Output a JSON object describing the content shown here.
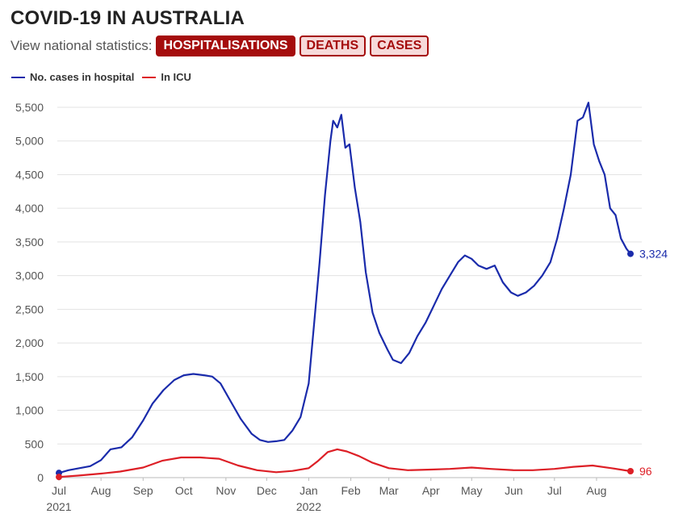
{
  "header": {
    "title": "COVID-19 IN AUSTRALIA",
    "subtitle": "View national statistics:",
    "tabs": [
      {
        "label": "HOSPITALISATIONS",
        "active": true
      },
      {
        "label": "DEATHS",
        "active": false
      },
      {
        "label": "CASES",
        "active": false
      }
    ]
  },
  "colors": {
    "hospital": "#1a2bab",
    "icu": "#dd1f26",
    "accent": "#a50d0d",
    "grid": "#e3e3e3"
  },
  "chart_data": {
    "type": "line",
    "title": "",
    "xlabel": "",
    "ylabel": "",
    "ylim": [
      0,
      5500
    ],
    "yticks": [
      0,
      500,
      1000,
      1500,
      2000,
      2500,
      3000,
      3500,
      4000,
      4500,
      5000,
      5500
    ],
    "ytick_labels": [
      "0",
      "500",
      "1,000",
      "1,500",
      "2,000",
      "2,500",
      "3,000",
      "3,500",
      "4,000",
      "4,500",
      "5,000",
      "5,500"
    ],
    "xlim": [
      "2021-07-01",
      "2022-08-26"
    ],
    "xticks": [
      {
        "date": "2021-07-01",
        "label": "Jul",
        "year": "2021"
      },
      {
        "date": "2021-08-01",
        "label": "Aug",
        "year": ""
      },
      {
        "date": "2021-09-01",
        "label": "Sep",
        "year": ""
      },
      {
        "date": "2021-10-01",
        "label": "Oct",
        "year": ""
      },
      {
        "date": "2021-11-01",
        "label": "Nov",
        "year": ""
      },
      {
        "date": "2021-12-01",
        "label": "Dec",
        "year": ""
      },
      {
        "date": "2022-01-01",
        "label": "Jan",
        "year": "2022"
      },
      {
        "date": "2022-02-01",
        "label": "Feb",
        "year": ""
      },
      {
        "date": "2022-03-01",
        "label": "Mar",
        "year": ""
      },
      {
        "date": "2022-04-01",
        "label": "Apr",
        "year": ""
      },
      {
        "date": "2022-05-01",
        "label": "May",
        "year": ""
      },
      {
        "date": "2022-06-01",
        "label": "Jun",
        "year": ""
      },
      {
        "date": "2022-07-01",
        "label": "Jul",
        "year": ""
      },
      {
        "date": "2022-08-01",
        "label": "Aug",
        "year": ""
      }
    ],
    "grid": true,
    "legend_position": "top-left",
    "series": [
      {
        "name": "No. cases in hospital",
        "color": "#1a2bab",
        "end_label": "3,324",
        "points": [
          [
            "2021-07-01",
            70
          ],
          [
            "2021-07-08",
            110
          ],
          [
            "2021-07-16",
            140
          ],
          [
            "2021-07-24",
            170
          ],
          [
            "2021-08-01",
            260
          ],
          [
            "2021-08-08",
            420
          ],
          [
            "2021-08-16",
            450
          ],
          [
            "2021-08-24",
            600
          ],
          [
            "2021-09-01",
            850
          ],
          [
            "2021-09-08",
            1100
          ],
          [
            "2021-09-16",
            1300
          ],
          [
            "2021-09-24",
            1450
          ],
          [
            "2021-10-01",
            1520
          ],
          [
            "2021-10-08",
            1540
          ],
          [
            "2021-10-16",
            1520
          ],
          [
            "2021-10-22",
            1500
          ],
          [
            "2021-10-28",
            1400
          ],
          [
            "2021-11-04",
            1150
          ],
          [
            "2021-11-12",
            870
          ],
          [
            "2021-11-20",
            650
          ],
          [
            "2021-11-26",
            560
          ],
          [
            "2021-12-02",
            530
          ],
          [
            "2021-12-08",
            540
          ],
          [
            "2021-12-14",
            560
          ],
          [
            "2021-12-20",
            700
          ],
          [
            "2021-12-26",
            900
          ],
          [
            "2022-01-01",
            1400
          ],
          [
            "2022-01-05",
            2300
          ],
          [
            "2022-01-09",
            3200
          ],
          [
            "2022-01-13",
            4200
          ],
          [
            "2022-01-17",
            5000
          ],
          [
            "2022-01-19",
            5300
          ],
          [
            "2022-01-22",
            5200
          ],
          [
            "2022-01-25",
            5390
          ],
          [
            "2022-01-28",
            4900
          ],
          [
            "2022-01-31",
            4950
          ],
          [
            "2022-02-04",
            4300
          ],
          [
            "2022-02-08",
            3800
          ],
          [
            "2022-02-12",
            3050
          ],
          [
            "2022-02-17",
            2450
          ],
          [
            "2022-02-22",
            2150
          ],
          [
            "2022-02-28",
            1900
          ],
          [
            "2022-03-04",
            1750
          ],
          [
            "2022-03-10",
            1700
          ],
          [
            "2022-03-16",
            1850
          ],
          [
            "2022-03-22",
            2100
          ],
          [
            "2022-03-28",
            2300
          ],
          [
            "2022-04-03",
            2550
          ],
          [
            "2022-04-09",
            2800
          ],
          [
            "2022-04-15",
            3000
          ],
          [
            "2022-04-21",
            3200
          ],
          [
            "2022-04-26",
            3300
          ],
          [
            "2022-05-01",
            3250
          ],
          [
            "2022-05-06",
            3150
          ],
          [
            "2022-05-12",
            3100
          ],
          [
            "2022-05-18",
            3150
          ],
          [
            "2022-05-24",
            2900
          ],
          [
            "2022-05-30",
            2750
          ],
          [
            "2022-06-04",
            2700
          ],
          [
            "2022-06-10",
            2750
          ],
          [
            "2022-06-16",
            2850
          ],
          [
            "2022-06-22",
            3000
          ],
          [
            "2022-06-28",
            3200
          ],
          [
            "2022-07-03",
            3550
          ],
          [
            "2022-07-08",
            4000
          ],
          [
            "2022-07-13",
            4500
          ],
          [
            "2022-07-18",
            5300
          ],
          [
            "2022-07-22",
            5350
          ],
          [
            "2022-07-26",
            5570
          ],
          [
            "2022-07-30",
            4950
          ],
          [
            "2022-08-03",
            4700
          ],
          [
            "2022-08-07",
            4500
          ],
          [
            "2022-08-11",
            4000
          ],
          [
            "2022-08-15",
            3900
          ],
          [
            "2022-08-19",
            3550
          ],
          [
            "2022-08-23",
            3400
          ],
          [
            "2022-08-26",
            3324
          ]
        ]
      },
      {
        "name": "In ICU",
        "color": "#dd1f26",
        "end_label": "96",
        "points": [
          [
            "2021-07-01",
            10
          ],
          [
            "2021-07-15",
            30
          ],
          [
            "2021-08-01",
            60
          ],
          [
            "2021-08-15",
            90
          ],
          [
            "2021-09-01",
            150
          ],
          [
            "2021-09-15",
            250
          ],
          [
            "2021-09-29",
            300
          ],
          [
            "2021-10-13",
            300
          ],
          [
            "2021-10-27",
            280
          ],
          [
            "2021-11-10",
            180
          ],
          [
            "2021-11-24",
            110
          ],
          [
            "2021-12-08",
            80
          ],
          [
            "2021-12-20",
            100
          ],
          [
            "2022-01-01",
            140
          ],
          [
            "2022-01-08",
            250
          ],
          [
            "2022-01-15",
            380
          ],
          [
            "2022-01-22",
            420
          ],
          [
            "2022-01-29",
            390
          ],
          [
            "2022-02-07",
            320
          ],
          [
            "2022-02-17",
            220
          ],
          [
            "2022-03-01",
            140
          ],
          [
            "2022-03-15",
            110
          ],
          [
            "2022-04-01",
            120
          ],
          [
            "2022-04-15",
            130
          ],
          [
            "2022-05-01",
            150
          ],
          [
            "2022-05-15",
            130
          ],
          [
            "2022-06-01",
            110
          ],
          [
            "2022-06-15",
            110
          ],
          [
            "2022-07-01",
            130
          ],
          [
            "2022-07-15",
            160
          ],
          [
            "2022-07-29",
            180
          ],
          [
            "2022-08-12",
            140
          ],
          [
            "2022-08-26",
            96
          ]
        ]
      }
    ]
  }
}
